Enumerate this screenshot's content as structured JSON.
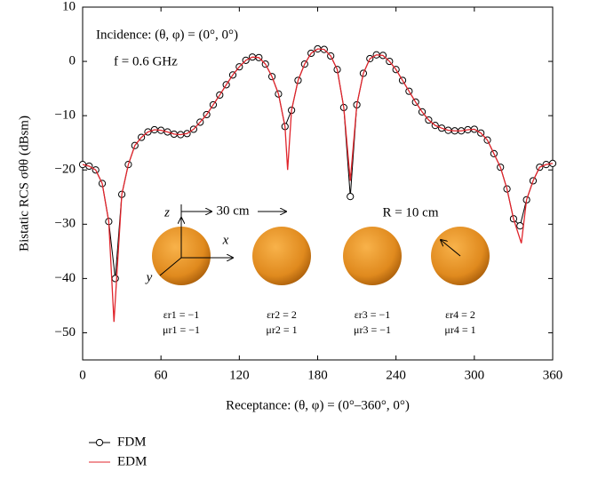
{
  "chart_data": {
    "type": "line",
    "ylabel": "Bistatic RCS σθθ (dBsm)",
    "xlabel": "Receptance: (θ, φ) = (0°–360°, 0°)",
    "annotations": [
      "Incidence: (θ, φ) = (0°, 0°)",
      "f = 0.6 GHz",
      "30 cm",
      "R = 10 cm",
      "z",
      "x",
      "y",
      "εr1 = −1",
      "μr1 = −1",
      "εr2 = 2",
      "μr2 = 1",
      "εr3 = −1",
      "μr3 = −1",
      "εr4 = 2",
      "μr4 = 1"
    ],
    "xlim": [
      0,
      360
    ],
    "xticks": [
      0,
      60,
      120,
      180,
      240,
      300,
      360
    ],
    "ylim": [
      -55,
      10
    ],
    "yticks": [
      10,
      0,
      {
        "value": -10,
        "label": "−10"
      },
      {
        "value": -20,
        "label": "−20"
      },
      {
        "value": -30,
        "label": "−30"
      },
      {
        "value": -40,
        "label": "−40"
      },
      {
        "value": -50,
        "label": "−50"
      }
    ],
    "series": [
      {
        "name": "FDM",
        "color": "#000000",
        "marker": "circle",
        "x": [
          0,
          5,
          10,
          15,
          20,
          25,
          30,
          35,
          40,
          45,
          50,
          55,
          60,
          65,
          70,
          75,
          80,
          85,
          90,
          95,
          100,
          105,
          110,
          115,
          120,
          125,
          130,
          135,
          140,
          145,
          150,
          155,
          160,
          165,
          170,
          175,
          180,
          185,
          190,
          195,
          200,
          205,
          210,
          215,
          220,
          225,
          230,
          235,
          240,
          245,
          250,
          255,
          260,
          265,
          270,
          275,
          280,
          285,
          290,
          295,
          300,
          305,
          310,
          315,
          320,
          325,
          330,
          335,
          340,
          345,
          350,
          355,
          360
        ],
        "values": [
          -19,
          -19.3,
          -20,
          -22.5,
          -29.5,
          -40,
          -24.5,
          -19,
          -15.5,
          -14,
          -13,
          -12.6,
          -12.7,
          -13,
          -13.4,
          -13.5,
          -13.3,
          -12.5,
          -11.2,
          -9.8,
          -8,
          -6.2,
          -4.3,
          -2.5,
          -1,
          0.2,
          0.8,
          0.7,
          -0.5,
          -2.8,
          -6,
          -12,
          -9,
          -3.5,
          -0.5,
          1.5,
          2.3,
          2.2,
          1,
          -1.5,
          -8.5,
          -24.9,
          -8,
          -2.2,
          0.5,
          1.2,
          1.1,
          0,
          -1.5,
          -3.5,
          -5.5,
          -7.5,
          -9.3,
          -10.8,
          -11.8,
          -12.3,
          -12.7,
          -12.8,
          -12.8,
          -12.6,
          -12.5,
          -13.2,
          -14.5,
          -17,
          -19.5,
          -23.5,
          -29,
          -30.3,
          -25.5,
          -22,
          -19.5,
          -19,
          -18.8
        ]
      },
      {
        "name": "EDM",
        "color": "#e0242b",
        "x": [
          0,
          5,
          10,
          15,
          20,
          24,
          30,
          35,
          40,
          45,
          50,
          55,
          60,
          65,
          70,
          75,
          80,
          85,
          90,
          95,
          100,
          105,
          110,
          115,
          120,
          125,
          130,
          135,
          140,
          145,
          150,
          155,
          157,
          160,
          165,
          170,
          175,
          180,
          185,
          190,
          195,
          200,
          205,
          210,
          215,
          220,
          225,
          230,
          235,
          240,
          245,
          250,
          255,
          260,
          265,
          270,
          275,
          280,
          285,
          290,
          295,
          300,
          305,
          310,
          315,
          320,
          325,
          330,
          336,
          340,
          345,
          350,
          355,
          360
        ],
        "values": [
          -19,
          -19.3,
          -20,
          -22.5,
          -29.5,
          -48,
          -24.5,
          -19,
          -15.5,
          -14,
          -13,
          -12.6,
          -12.7,
          -13,
          -13.4,
          -13.5,
          -13.3,
          -12.5,
          -11.2,
          -9.8,
          -8,
          -6.2,
          -4.3,
          -2.5,
          -1,
          0.2,
          0.8,
          0.7,
          -0.5,
          -2.8,
          -6,
          -12,
          -20,
          -9,
          -3.5,
          -0.5,
          1.5,
          2.3,
          2.2,
          1,
          -1.5,
          -8.5,
          -22,
          -8,
          -2.2,
          0.5,
          1.2,
          1.1,
          0,
          -1.5,
          -3.5,
          -5.5,
          -7.5,
          -9.3,
          -10.8,
          -11.8,
          -12.3,
          -12.7,
          -12.8,
          -12.8,
          -12.6,
          -12.5,
          -13.2,
          -14.5,
          -17,
          -19.5,
          -23.5,
          -29,
          -33.5,
          -25.5,
          -22,
          -19.5,
          -19,
          -18.8
        ]
      }
    ]
  }
}
